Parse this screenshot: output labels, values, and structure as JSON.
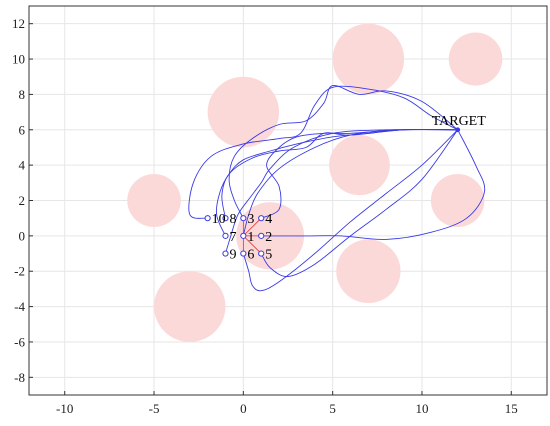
{
  "chart_data": {
    "type": "scatter",
    "title": "",
    "xlabel": "",
    "ylabel": "",
    "xlim": [
      -12,
      17
    ],
    "ylim": [
      -9,
      13
    ],
    "xticks": [
      -10,
      -5,
      0,
      5,
      10,
      15
    ],
    "yticks": [
      -8,
      -6,
      -4,
      -2,
      0,
      2,
      4,
      6,
      8,
      10,
      12
    ],
    "grid": true,
    "colors": {
      "obstacle": "#fcd9d9",
      "path": "#3a3ae6",
      "start_marker": "#3a3ae6",
      "start_link": "#e03030",
      "grid": "#e6e6e6",
      "axis": "#333333"
    },
    "target": {
      "label": "TARGET",
      "x": 12,
      "y": 6
    },
    "obstacles": [
      {
        "x": 7,
        "y": 10,
        "r": 2
      },
      {
        "x": 13,
        "y": 10,
        "r": 1.5
      },
      {
        "x": 0,
        "y": 7,
        "r": 2
      },
      {
        "x": 6.5,
        "y": 4,
        "r": 1.7
      },
      {
        "x": -5,
        "y": 2,
        "r": 1.5
      },
      {
        "x": 12,
        "y": 2,
        "r": 1.5
      },
      {
        "x": 1.5,
        "y": 0,
        "r": 1.9
      },
      {
        "x": 7,
        "y": -2,
        "r": 1.8
      },
      {
        "x": -3,
        "y": -4,
        "r": 2
      }
    ],
    "start_points": [
      {
        "label": "1",
        "x": 0,
        "y": 0
      },
      {
        "label": "2",
        "x": 1,
        "y": 0
      },
      {
        "label": "3",
        "x": 0,
        "y": 1
      },
      {
        "label": "4",
        "x": 1,
        "y": 1
      },
      {
        "label": "5",
        "x": 1,
        "y": -1
      },
      {
        "label": "6",
        "x": 0,
        "y": -1
      },
      {
        "label": "7",
        "x": -1,
        "y": 0
      },
      {
        "label": "8",
        "x": -1,
        "y": 1
      },
      {
        "label": "9",
        "x": -1,
        "y": -1
      },
      {
        "label": "10",
        "x": -2,
        "y": 1
      }
    ],
    "trajectories": [
      [
        [
          0,
          0
        ],
        [
          0.3,
          1.2
        ],
        [
          0.8,
          2.4
        ],
        [
          2,
          3.8
        ],
        [
          4,
          5
        ],
        [
          6,
          5.7
        ],
        [
          8.5,
          6
        ],
        [
          12,
          6
        ]
      ],
      [
        [
          1,
          0
        ],
        [
          2,
          0
        ],
        [
          3.5,
          0
        ],
        [
          5.5,
          0
        ],
        [
          8,
          -0.2
        ],
        [
          10.5,
          0.2
        ],
        [
          12.5,
          1
        ],
        [
          13.5,
          2.5
        ],
        [
          13,
          4
        ],
        [
          12,
          6
        ]
      ],
      [
        [
          0,
          1
        ],
        [
          -0.5,
          2
        ],
        [
          -0.8,
          3.2
        ],
        [
          -0.5,
          4.5
        ],
        [
          0.5,
          5.5
        ],
        [
          2,
          6.3
        ],
        [
          3.5,
          6.5
        ],
        [
          4.5,
          7.5
        ],
        [
          5,
          8.5
        ],
        [
          6.5,
          8
        ],
        [
          8,
          8.2
        ],
        [
          10,
          7.6
        ],
        [
          12,
          6
        ]
      ],
      [
        [
          1,
          1
        ],
        [
          2,
          1.5
        ],
        [
          2,
          2.8
        ],
        [
          1.3,
          4
        ],
        [
          2,
          5
        ],
        [
          3,
          5.6
        ],
        [
          4.5,
          5.8
        ],
        [
          6,
          5.8
        ],
        [
          9,
          6
        ],
        [
          12,
          6
        ]
      ],
      [
        [
          1,
          -1
        ],
        [
          1.5,
          -1.8
        ],
        [
          2.5,
          -2.3
        ],
        [
          4,
          -1.6
        ],
        [
          6,
          0
        ],
        [
          8,
          1.5
        ],
        [
          10,
          3.2
        ],
        [
          12,
          6
        ]
      ],
      [
        [
          0,
          -1
        ],
        [
          0.3,
          -2
        ],
        [
          0.5,
          -2.8
        ],
        [
          1,
          -3.1
        ],
        [
          2,
          -2.6
        ],
        [
          4,
          -1
        ],
        [
          6,
          0.8
        ],
        [
          8,
          2.4
        ],
        [
          10,
          4
        ],
        [
          12,
          6
        ]
      ],
      [
        [
          -1,
          0
        ],
        [
          -1.5,
          1.2
        ],
        [
          -1.3,
          2.5
        ],
        [
          -0.8,
          3.5
        ],
        [
          0,
          4.3
        ],
        [
          1.5,
          4.8
        ],
        [
          3,
          5.2
        ],
        [
          5,
          5.6
        ],
        [
          7,
          5.8
        ],
        [
          9,
          6
        ],
        [
          12,
          6
        ]
      ],
      [
        [
          -1,
          1
        ],
        [
          -1.2,
          2.3
        ],
        [
          -0.8,
          3.5
        ],
        [
          0.5,
          4.4
        ],
        [
          2,
          4.8
        ],
        [
          3.5,
          5
        ],
        [
          4.5,
          5.8
        ],
        [
          6,
          5.7
        ],
        [
          9,
          6
        ],
        [
          12,
          6
        ]
      ],
      [
        [
          -1,
          -1
        ],
        [
          -0.7,
          0
        ],
        [
          -0.3,
          1.2
        ],
        [
          0.4,
          2.2
        ],
        [
          1,
          3
        ],
        [
          1.5,
          3.8
        ],
        [
          2.8,
          5
        ],
        [
          5,
          5.8
        ],
        [
          8,
          6
        ],
        [
          12,
          6
        ]
      ],
      [
        [
          -2,
          1
        ],
        [
          -3,
          1.2
        ],
        [
          -2.8,
          3
        ],
        [
          -1.8,
          4.5
        ],
        [
          0,
          5.2
        ],
        [
          2,
          5.5
        ],
        [
          3.2,
          5.8
        ],
        [
          4,
          7.4
        ],
        [
          5,
          8.4
        ],
        [
          7,
          8.3
        ],
        [
          9,
          7.8
        ],
        [
          10.5,
          6.8
        ],
        [
          12,
          6
        ]
      ]
    ]
  }
}
